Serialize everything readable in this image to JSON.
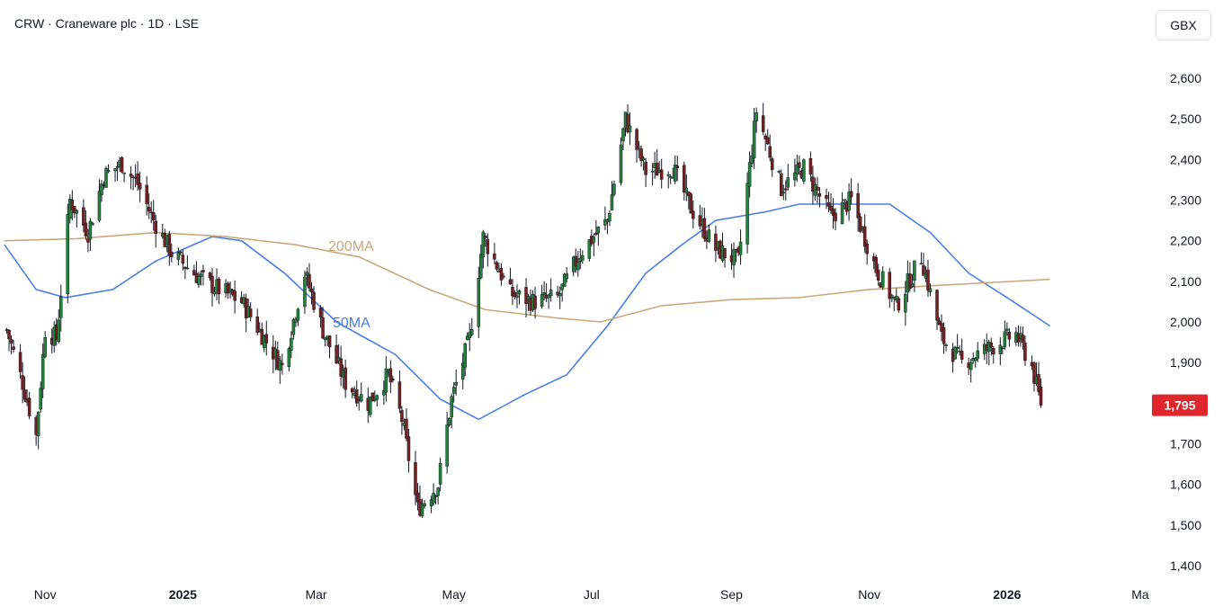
{
  "header": {
    "title": "CRW · Craneware plc · 1D · LSE",
    "currency_button": "GBX"
  },
  "colors": {
    "up": "#22833a",
    "down": "#7a1f1f",
    "wick": "#131722",
    "ma50": "#4a7fe8",
    "ma200": "#c9a97b",
    "last_price_bg": "#e0262d"
  },
  "chart_data": {
    "type": "candlestick",
    "title": "CRW · Craneware plc · 1D · LSE",
    "y_axis": {
      "min": 1380,
      "max": 2660,
      "ticks": [
        "2,600",
        "2,500",
        "2,400",
        "2,300",
        "2,200",
        "2,100",
        "2,000",
        "1,900",
        "1,800",
        "1,700",
        "1,600",
        "1,500",
        "1,400"
      ],
      "tick_values": [
        2600,
        2500,
        2400,
        2300,
        2200,
        2100,
        2000,
        1900,
        1800,
        1700,
        1600,
        1500,
        1400
      ]
    },
    "x_axis": {
      "start": "2024-10-14",
      "end": "2026-03-01",
      "tick_labels": [
        "Nov",
        "2025",
        "Mar",
        "May",
        "Jul",
        "Sep",
        "Nov",
        "2026",
        "Ma"
      ],
      "tick_dates": [
        "2024-11-01",
        "2025-01-01",
        "2025-03-01",
        "2025-05-01",
        "2025-07-01",
        "2025-09-01",
        "2025-11-01",
        "2026-01-01",
        "2026-03-01"
      ]
    },
    "last_price": {
      "value": 1795,
      "label": "1,795"
    },
    "ohlc_summary": [
      {
        "date": "2024-10-15",
        "close": 1980
      },
      {
        "date": "2024-10-22",
        "close": 1850
      },
      {
        "date": "2024-10-28",
        "close": 1720
      },
      {
        "date": "2024-11-01",
        "close": 1980
      },
      {
        "date": "2024-11-06",
        "close": 1960
      },
      {
        "date": "2024-11-12",
        "close": 2300
      },
      {
        "date": "2024-11-20",
        "close": 2220
      },
      {
        "date": "2024-11-27",
        "close": 2360
      },
      {
        "date": "2024-12-05",
        "close": 2390
      },
      {
        "date": "2024-12-12",
        "close": 2340
      },
      {
        "date": "2024-12-19",
        "close": 2250
      },
      {
        "date": "2024-12-27",
        "close": 2170
      },
      {
        "date": "2025-01-08",
        "close": 2110
      },
      {
        "date": "2025-01-17",
        "close": 2080
      },
      {
        "date": "2025-01-27",
        "close": 2050
      },
      {
        "date": "2025-02-06",
        "close": 1960
      },
      {
        "date": "2025-02-14",
        "close": 1890
      },
      {
        "date": "2025-02-24",
        "close": 2120
      },
      {
        "date": "2025-03-04",
        "close": 1980
      },
      {
        "date": "2025-03-14",
        "close": 1850
      },
      {
        "date": "2025-03-24",
        "close": 1800
      },
      {
        "date": "2025-04-02",
        "close": 1870
      },
      {
        "date": "2025-04-08",
        "close": 1760
      },
      {
        "date": "2025-04-15",
        "close": 1540
      },
      {
        "date": "2025-04-24",
        "close": 1600
      },
      {
        "date": "2025-04-30",
        "close": 1810
      },
      {
        "date": "2025-05-08",
        "close": 1960
      },
      {
        "date": "2025-05-14",
        "close": 2210
      },
      {
        "date": "2025-05-26",
        "close": 2070
      },
      {
        "date": "2025-06-05",
        "close": 2050
      },
      {
        "date": "2025-06-16",
        "close": 2060
      },
      {
        "date": "2025-06-26",
        "close": 2170
      },
      {
        "date": "2025-07-08",
        "close": 2250
      },
      {
        "date": "2025-07-16",
        "close": 2500
      },
      {
        "date": "2025-07-25",
        "close": 2370
      },
      {
        "date": "2025-08-06",
        "close": 2380
      },
      {
        "date": "2025-08-14",
        "close": 2280
      },
      {
        "date": "2025-08-25",
        "close": 2180
      },
      {
        "date": "2025-09-04",
        "close": 2150
      },
      {
        "date": "2025-09-12",
        "close": 2520
      },
      {
        "date": "2025-09-23",
        "close": 2330
      },
      {
        "date": "2025-10-03",
        "close": 2380
      },
      {
        "date": "2025-10-15",
        "close": 2260
      },
      {
        "date": "2025-10-24",
        "close": 2300
      },
      {
        "date": "2025-11-04",
        "close": 2130
      },
      {
        "date": "2025-11-13",
        "close": 2040
      },
      {
        "date": "2025-11-24",
        "close": 2160
      },
      {
        "date": "2025-12-03",
        "close": 1960
      },
      {
        "date": "2025-12-12",
        "close": 1900
      },
      {
        "date": "2025-12-22",
        "close": 1930
      },
      {
        "date": "2026-01-05",
        "close": 1970
      },
      {
        "date": "2026-01-12",
        "close": 1890
      },
      {
        "date": "2026-01-16",
        "close": 1795
      }
    ],
    "series": [
      {
        "name": "50MA",
        "points": [
          {
            "date": "2024-10-14",
            "value": 2190
          },
          {
            "date": "2024-10-28",
            "value": 2080
          },
          {
            "date": "2024-11-10",
            "value": 2060
          },
          {
            "date": "2024-12-01",
            "value": 2080
          },
          {
            "date": "2024-12-20",
            "value": 2150
          },
          {
            "date": "2025-01-14",
            "value": 2210
          },
          {
            "date": "2025-01-27",
            "value": 2200
          },
          {
            "date": "2025-02-15",
            "value": 2120
          },
          {
            "date": "2025-03-10",
            "value": 2000
          },
          {
            "date": "2025-04-05",
            "value": 1920
          },
          {
            "date": "2025-04-25",
            "value": 1810
          },
          {
            "date": "2025-05-12",
            "value": 1760
          },
          {
            "date": "2025-06-01",
            "value": 1820
          },
          {
            "date": "2025-06-20",
            "value": 1870
          },
          {
            "date": "2025-07-08",
            "value": 1990
          },
          {
            "date": "2025-07-25",
            "value": 2120
          },
          {
            "date": "2025-08-10",
            "value": 2190
          },
          {
            "date": "2025-08-25",
            "value": 2250
          },
          {
            "date": "2025-09-15",
            "value": 2270
          },
          {
            "date": "2025-10-01",
            "value": 2290
          },
          {
            "date": "2025-10-25",
            "value": 2290
          },
          {
            "date": "2025-11-10",
            "value": 2290
          },
          {
            "date": "2025-11-28",
            "value": 2220
          },
          {
            "date": "2025-12-15",
            "value": 2120
          },
          {
            "date": "2026-01-01",
            "value": 2060
          },
          {
            "date": "2026-01-20",
            "value": 1990
          }
        ]
      },
      {
        "name": "200MA",
        "points": [
          {
            "date": "2024-10-14",
            "value": 2200
          },
          {
            "date": "2024-11-15",
            "value": 2205
          },
          {
            "date": "2024-12-20",
            "value": 2220
          },
          {
            "date": "2025-01-20",
            "value": 2210
          },
          {
            "date": "2025-02-20",
            "value": 2190
          },
          {
            "date": "2025-03-20",
            "value": 2160
          },
          {
            "date": "2025-04-20",
            "value": 2080
          },
          {
            "date": "2025-05-15",
            "value": 2030
          },
          {
            "date": "2025-06-15",
            "value": 2010
          },
          {
            "date": "2025-07-05",
            "value": 2000
          },
          {
            "date": "2025-08-01",
            "value": 2040
          },
          {
            "date": "2025-09-01",
            "value": 2055
          },
          {
            "date": "2025-10-01",
            "value": 2060
          },
          {
            "date": "2025-11-01",
            "value": 2080
          },
          {
            "date": "2025-12-01",
            "value": 2090
          },
          {
            "date": "2026-01-20",
            "value": 2105
          }
        ]
      }
    ],
    "ma_labels": [
      {
        "text": "200MA",
        "series": "200MA"
      },
      {
        "text": "50MA",
        "series": "50MA"
      }
    ]
  }
}
